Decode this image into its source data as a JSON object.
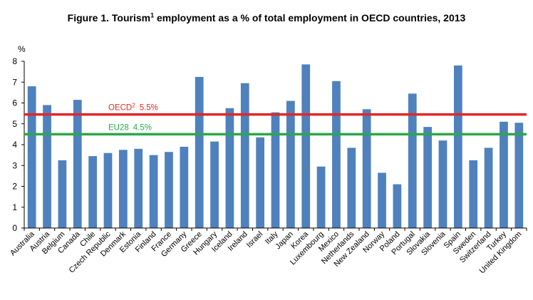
{
  "chart_data": {
    "type": "bar",
    "title": {
      "prefix": "Figure 1. Tourism",
      "superscript": "1",
      "suffix": " employment as a % of total employment in OECD countries, 2013"
    },
    "ylabel": "%",
    "ylim": [
      0,
      8
    ],
    "yticks": [
      "0",
      "1",
      "2",
      "3",
      "4",
      "5",
      "6",
      "7",
      "8"
    ],
    "grid": false,
    "bar_color": "#4F81BD",
    "categories": [
      "Australia",
      "Austria",
      "Belgium",
      "Canada",
      "Chile",
      "Czech Republic",
      "Denmark",
      "Estonia",
      "Finland",
      "France",
      "Germany",
      "Greece",
      "Hungary",
      "Iceland",
      "Ireland",
      "Israel",
      "Italy",
      "Japan",
      "Korea",
      "Luxembourg",
      "Mexico",
      "Netherlands",
      "New Zealand",
      "Norway",
      "Poland",
      "Portugal",
      "Slovakia",
      "Slovenia",
      "Spain",
      "Sweden",
      "Switzerland",
      "Turkey",
      "United Kingdom"
    ],
    "values": [
      6.8,
      5.9,
      3.25,
      6.15,
      3.45,
      3.6,
      3.75,
      3.8,
      3.5,
      3.65,
      3.9,
      7.25,
      4.15,
      5.75,
      6.95,
      4.35,
      5.55,
      6.1,
      7.85,
      2.95,
      7.05,
      3.85,
      5.7,
      2.65,
      2.1,
      6.45,
      4.85,
      4.2,
      7.8,
      3.25,
      3.85,
      5.1,
      5.05
    ],
    "reference_lines": [
      {
        "name": "OECD",
        "superscript": "2",
        "label_value": "5.5%",
        "value": 5.45,
        "color": "#E32626"
      },
      {
        "name": "EU28",
        "superscript": "",
        "label_value": "4.5%",
        "value": 4.5,
        "color": "#2BA84A"
      }
    ]
  }
}
